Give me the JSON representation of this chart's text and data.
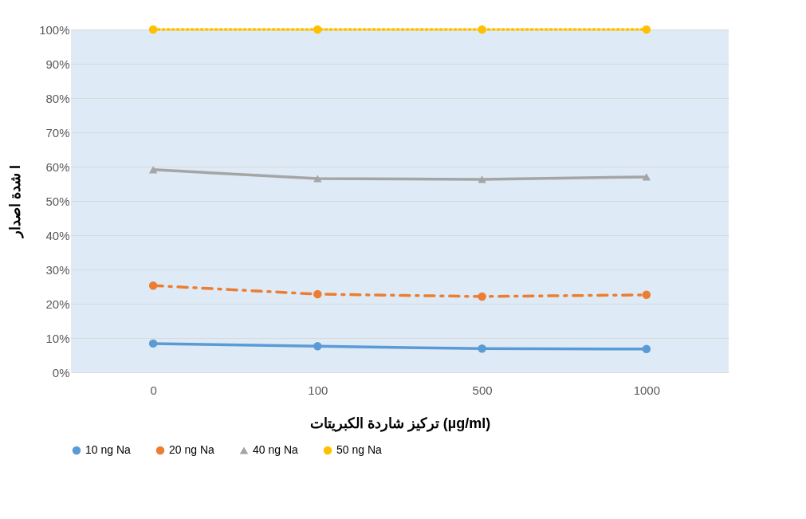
{
  "chart_data": {
    "type": "line",
    "xlabel": "تركيز شاردة الكبريتات  (µg/ml)",
    "ylabel": "شدة اصدار I",
    "categories": [
      "0",
      "100",
      "500",
      "1000"
    ],
    "ylim": [
      0,
      100
    ],
    "yticks": [
      {
        "value": 0,
        "label": "0%"
      },
      {
        "value": 10,
        "label": "10%"
      },
      {
        "value": 20,
        "label": "20%"
      },
      {
        "value": 30,
        "label": "30%"
      },
      {
        "value": 40,
        "label": "40%"
      },
      {
        "value": 50,
        "label": "50%"
      },
      {
        "value": 60,
        "label": "60%"
      },
      {
        "value": 70,
        "label": "70%"
      },
      {
        "value": 80,
        "label": "80%"
      },
      {
        "value": 90,
        "label": "90%"
      },
      {
        "value": 100,
        "label": "100%"
      }
    ],
    "grid": "y",
    "legend": "bottom",
    "series": [
      {
        "name": "10 ng Na",
        "color": "#5b9bd5",
        "marker": "circle",
        "line_style": "solid",
        "values": [
          8.4,
          7.6,
          6.9,
          6.8
        ]
      },
      {
        "name": "20 ng Na",
        "color": "#ed7d31",
        "marker": "circle",
        "line_style": "dashed",
        "values": [
          25.3,
          22.8,
          22.1,
          22.6
        ]
      },
      {
        "name": "40 ng Na",
        "color": "#a5a5a5",
        "marker": "triangle",
        "line_style": "solid",
        "values": [
          59.1,
          56.5,
          56.3,
          57.0
        ]
      },
      {
        "name": "50 ng Na",
        "color": "#ffc000",
        "marker": "circle",
        "line_style": "dotted",
        "values": [
          100,
          100,
          100,
          100
        ]
      }
    ]
  }
}
